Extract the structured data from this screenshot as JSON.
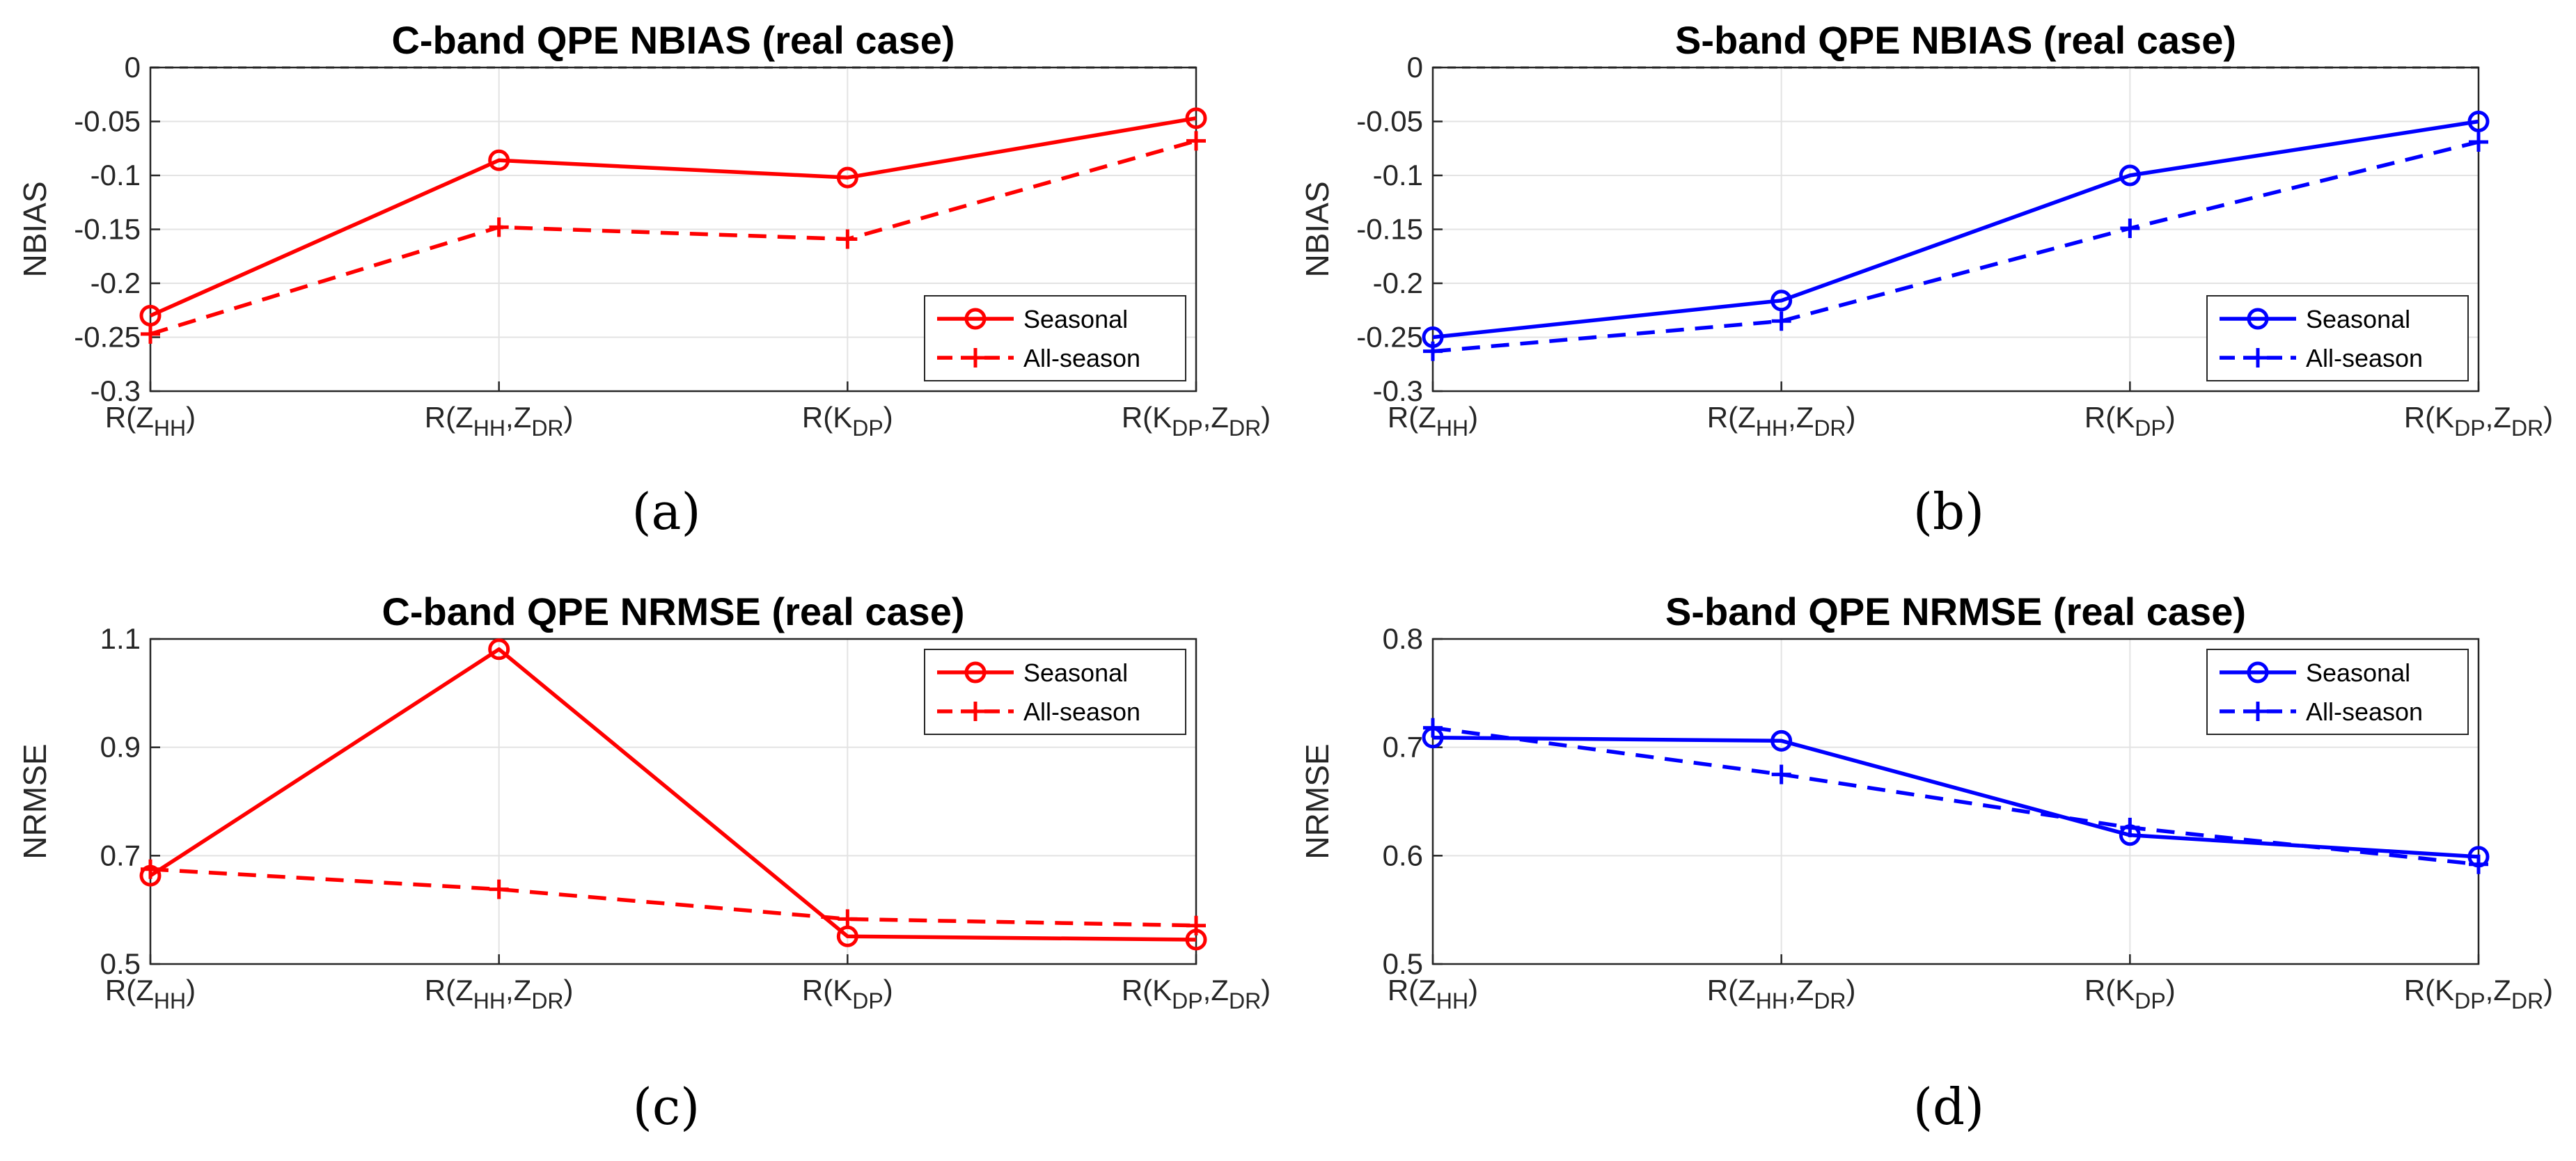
{
  "chart_data": [
    {
      "id": "a",
      "type": "line",
      "title": "C-band QPE NBIAS (real case)",
      "ylabel": "NBIAS",
      "panel_label": "(a)",
      "color": "#ff0000",
      "ylim": [
        -0.3,
        0
      ],
      "yticks": [
        "0",
        "-0.05",
        "-0.1",
        "-0.15",
        "-0.2",
        "-0.25",
        "-0.3"
      ],
      "ytick_values": [
        0,
        -0.05,
        -0.1,
        -0.15,
        -0.2,
        -0.25,
        -0.3
      ],
      "zero_line": true,
      "legend_position": "bottom-right",
      "categories": [
        {
          "base": "R(Z",
          "sub1": "HH",
          "sep": "",
          "sub2base": "",
          "sub2": "",
          "close": ")"
        },
        {
          "base": "R(Z",
          "sub1": "HH",
          "sep": ",Z",
          "sub2base": "",
          "sub2": "DR",
          "close": ")"
        },
        {
          "base": "R(K",
          "sub1": "DP",
          "sep": "",
          "sub2base": "",
          "sub2": "",
          "close": ")"
        },
        {
          "base": "R(K",
          "sub1": "DP",
          "sep": ",Z",
          "sub2base": "",
          "sub2": "DR",
          "close": ")"
        }
      ],
      "series": [
        {
          "name": "Seasonal",
          "style": "solid",
          "marker": "circle",
          "values": [
            -0.23,
            -0.086,
            -0.102,
            -0.047
          ]
        },
        {
          "name": "All-season",
          "style": "dashed",
          "marker": "plus",
          "values": [
            -0.247,
            -0.148,
            -0.159,
            -0.068
          ]
        }
      ]
    },
    {
      "id": "b",
      "type": "line",
      "title": "S-band QPE NBIAS (real case)",
      "ylabel": "NBIAS",
      "panel_label": "(b)",
      "color": "#0000ff",
      "ylim": [
        -0.3,
        0
      ],
      "yticks": [
        "0",
        "-0.05",
        "-0.1",
        "-0.15",
        "-0.2",
        "-0.25",
        "-0.3"
      ],
      "ytick_values": [
        0,
        -0.05,
        -0.1,
        -0.15,
        -0.2,
        -0.25,
        -0.3
      ],
      "zero_line": true,
      "legend_position": "bottom-right",
      "categories": [
        {
          "base": "R(Z",
          "sub1": "HH",
          "sep": "",
          "sub2": "",
          "close": ")"
        },
        {
          "base": "R(Z",
          "sub1": "HH",
          "sep": ",Z",
          "sub2": "DR",
          "close": ")"
        },
        {
          "base": "R(K",
          "sub1": "DP",
          "sep": "",
          "sub2": "",
          "close": ")"
        },
        {
          "base": "R(K",
          "sub1": "DP",
          "sep": ",Z",
          "sub2": "DR",
          "close": ")"
        }
      ],
      "series": [
        {
          "name": "Seasonal",
          "style": "solid",
          "marker": "circle",
          "values": [
            -0.25,
            -0.216,
            -0.1,
            -0.05
          ]
        },
        {
          "name": "All-season",
          "style": "dashed",
          "marker": "plus",
          "values": [
            -0.263,
            -0.235,
            -0.149,
            -0.069
          ]
        }
      ]
    },
    {
      "id": "c",
      "type": "line",
      "title": "C-band QPE NRMSE (real case)",
      "ylabel": "NRMSE",
      "panel_label": "(c)",
      "color": "#ff0000",
      "ylim": [
        0.5,
        1.1
      ],
      "yticks": [
        "1.1",
        "0.9",
        "0.7",
        "0.5"
      ],
      "ytick_values": [
        1.1,
        0.9,
        0.7,
        0.5
      ],
      "zero_line": false,
      "legend_position": "top-right",
      "categories": [
        {
          "base": "R(Z",
          "sub1": "HH",
          "sep": "",
          "sub2": "",
          "close": ")"
        },
        {
          "base": "R(Z",
          "sub1": "HH",
          "sep": ",Z",
          "sub2": "DR",
          "close": ")"
        },
        {
          "base": "R(K",
          "sub1": "DP",
          "sep": "",
          "sub2": "",
          "close": ")"
        },
        {
          "base": "R(K",
          "sub1": "DP",
          "sep": ",Z",
          "sub2": "DR",
          "close": ")"
        }
      ],
      "series": [
        {
          "name": "Seasonal",
          "style": "solid",
          "marker": "circle",
          "values": [
            0.663,
            1.081,
            0.551,
            0.545
          ]
        },
        {
          "name": "All-season",
          "style": "dashed",
          "marker": "plus",
          "values": [
            0.675,
            0.638,
            0.583,
            0.571
          ]
        }
      ]
    },
    {
      "id": "d",
      "type": "line",
      "title": "S-band QPE NRMSE (real case)",
      "ylabel": "NRMSE",
      "panel_label": "(d)",
      "color": "#0000ff",
      "ylim": [
        0.5,
        0.8
      ],
      "yticks": [
        "0.8",
        "0.7",
        "0.6",
        "0.5"
      ],
      "ytick_values": [
        0.8,
        0.7,
        0.6,
        0.5
      ],
      "zero_line": false,
      "legend_position": "top-right",
      "categories": [
        {
          "base": "R(Z",
          "sub1": "HH",
          "sep": "",
          "sub2": "",
          "close": ")"
        },
        {
          "base": "R(Z",
          "sub1": "HH",
          "sep": ",Z",
          "sub2": "DR",
          "close": ")"
        },
        {
          "base": "R(K",
          "sub1": "DP",
          "sep": "",
          "sub2": "",
          "close": ")"
        },
        {
          "base": "R(K",
          "sub1": "DP",
          "sep": ",Z",
          "sub2": "DR",
          "close": ")"
        }
      ],
      "series": [
        {
          "name": "Seasonal",
          "style": "solid",
          "marker": "circle",
          "values": [
            0.709,
            0.706,
            0.619,
            0.599
          ]
        },
        {
          "name": "All-season",
          "style": "dashed",
          "marker": "plus",
          "values": [
            0.718,
            0.675,
            0.626,
            0.592
          ]
        }
      ]
    }
  ]
}
